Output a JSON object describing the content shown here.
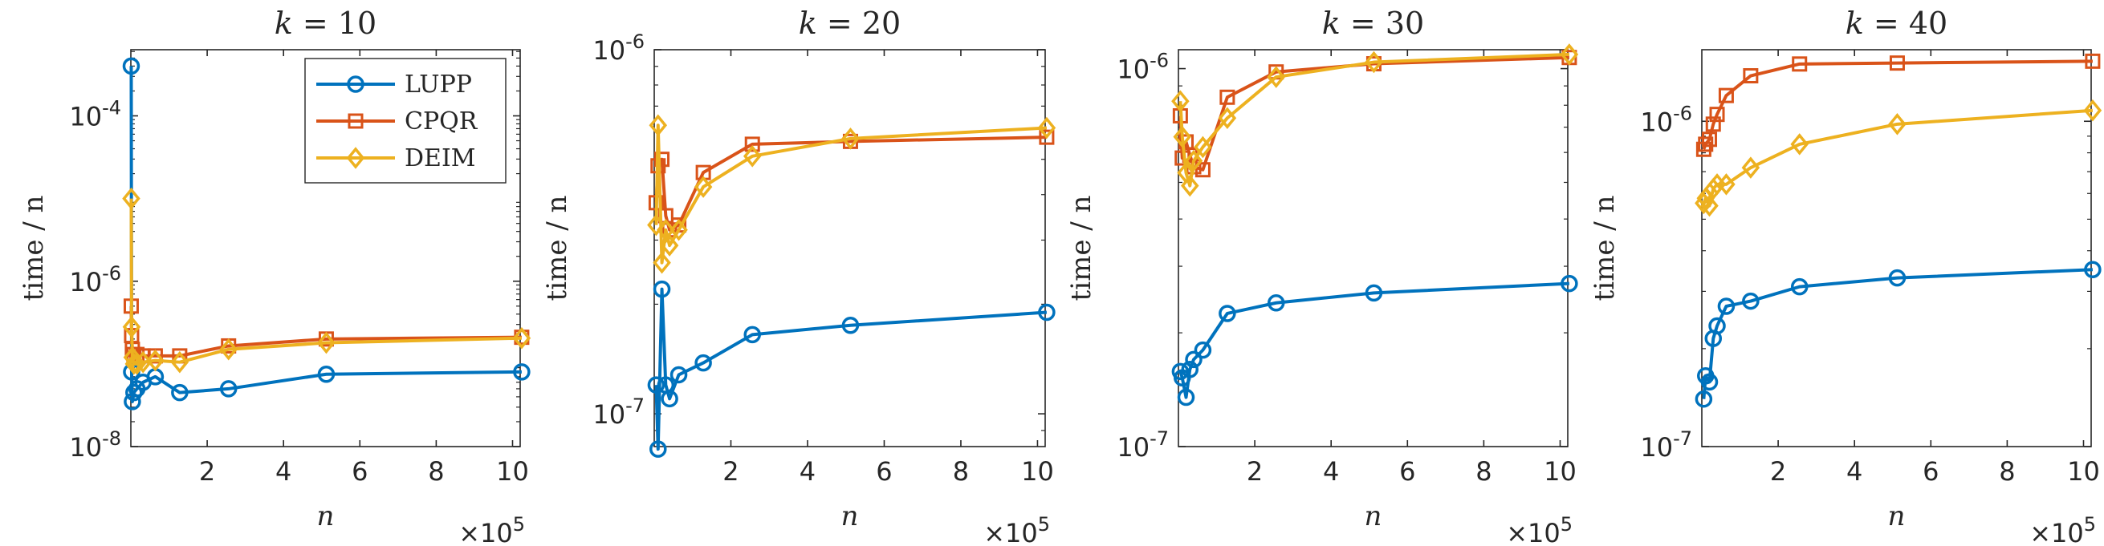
{
  "chart_data": [
    {
      "type": "line",
      "title": "k = 10",
      "title_var": "k",
      "title_value": "= 10",
      "xlabel": "n",
      "ylabel": "time / n",
      "x_multiplier": "×10",
      "x_multiplier_exp": "5",
      "xlim": [
        0,
        10.2
      ],
      "ylim_log10": [
        -8,
        -3.2
      ],
      "x_ticks": [
        2,
        4,
        6,
        8,
        10
      ],
      "x_tick_labels": [
        "2",
        "4",
        "6",
        "8",
        "10"
      ],
      "y_ticks_log10": [
        -8,
        -6,
        -4
      ],
      "y_tick_labels": [
        {
          "base": "10",
          "exp": "-8"
        },
        {
          "base": "10",
          "exp": "-6"
        },
        {
          "base": "10",
          "exp": "-4"
        }
      ],
      "legend": {
        "position": "top-right",
        "entries": [
          "LUPP",
          "CPQR",
          "DEIM"
        ]
      },
      "series": [
        {
          "name": "LUPP",
          "x": [
            0.01,
            0.02,
            0.04,
            0.08,
            0.16,
            0.32,
            0.64,
            1.28,
            2.56,
            5.12,
            10.24
          ],
          "y": [
            0.0004,
            8e-08,
            3.5e-08,
            4.5e-08,
            5e-08,
            6e-08,
            7e-08,
            4.5e-08,
            5e-08,
            7.5e-08,
            8e-08
          ]
        },
        {
          "name": "CPQR",
          "x": [
            0.01,
            0.02,
            0.04,
            0.08,
            0.16,
            0.32,
            0.64,
            1.28,
            2.56,
            5.12,
            10.24
          ],
          "y": [
            5e-07,
            2.2e-07,
            1.5e-07,
            1.3e-07,
            1.3e-07,
            1.25e-07,
            1.25e-07,
            1.25e-07,
            1.65e-07,
            2e-07,
            2.1e-07
          ]
        },
        {
          "name": "DEIM",
          "x": [
            0.01,
            0.02,
            0.04,
            0.08,
            0.16,
            0.32,
            0.64,
            1.28,
            2.56,
            5.12,
            10.24
          ],
          "y": [
            1e-05,
            2.8e-07,
            1.2e-07,
            1e-07,
            1e-07,
            1.05e-07,
            1.1e-07,
            1.05e-07,
            1.5e-07,
            1.8e-07,
            2.05e-07
          ]
        }
      ]
    },
    {
      "type": "line",
      "title": "k = 20",
      "title_var": "k",
      "title_value": "= 20",
      "xlabel": "n",
      "ylabel": "time / n",
      "x_multiplier": "×10",
      "x_multiplier_exp": "5",
      "xlim": [
        0,
        10.2
      ],
      "ylim_log10": [
        -7.09,
        -6
      ],
      "x_ticks": [
        2,
        4,
        6,
        8,
        10
      ],
      "x_tick_labels": [
        "2",
        "4",
        "6",
        "8",
        "10"
      ],
      "y_ticks_log10": [
        -7,
        -6
      ],
      "y_tick_labels": [
        {
          "base": "10",
          "exp": "-7"
        },
        {
          "base": "10",
          "exp": "-6"
        }
      ],
      "series": [
        {
          "name": "LUPP",
          "x": [
            0.05,
            0.1,
            0.2,
            0.3,
            0.4,
            0.64,
            1.28,
            2.56,
            5.12,
            10.24
          ],
          "y": [
            1.2e-07,
            8e-08,
            2.2e-07,
            1.2e-07,
            1.1e-07,
            1.28e-07,
            1.38e-07,
            1.65e-07,
            1.75e-07,
            1.9e-07
          ]
        },
        {
          "name": "CPQR",
          "x": [
            0.05,
            0.1,
            0.2,
            0.3,
            0.4,
            0.64,
            1.28,
            2.56,
            5.12,
            10.24
          ],
          "y": [
            3.8e-07,
            4.8e-07,
            5e-07,
            3.5e-07,
            3.2e-07,
            3.3e-07,
            4.6e-07,
            5.5e-07,
            5.6e-07,
            5.75e-07
          ]
        },
        {
          "name": "DEIM",
          "x": [
            0.05,
            0.1,
            0.2,
            0.3,
            0.4,
            0.64,
            1.28,
            2.56,
            5.12,
            10.24
          ],
          "y": [
            3.3e-07,
            6.2e-07,
            2.6e-07,
            3.2e-07,
            2.9e-07,
            3.2e-07,
            4.2e-07,
            5.1e-07,
            5.7e-07,
            6.1e-07
          ]
        }
      ]
    },
    {
      "type": "line",
      "title": "k = 30",
      "title_var": "k",
      "title_value": "= 30",
      "xlabel": "n",
      "ylabel": "time / n",
      "x_multiplier": "×10",
      "x_multiplier_exp": "5",
      "xlim": [
        0,
        10.2
      ],
      "ylim_log10": [
        -7,
        -5.95
      ],
      "x_ticks": [
        2,
        4,
        6,
        8,
        10
      ],
      "x_tick_labels": [
        "2",
        "4",
        "6",
        "8",
        "10"
      ],
      "y_ticks_log10": [
        -7,
        -6
      ],
      "y_tick_labels": [
        {
          "base": "10",
          "exp": "-7"
        },
        {
          "base": "10",
          "exp": "-6"
        }
      ],
      "series": [
        {
          "name": "LUPP",
          "x": [
            0.05,
            0.1,
            0.2,
            0.3,
            0.4,
            0.64,
            1.28,
            2.56,
            5.12,
            10.24
          ],
          "y": [
            1.58e-07,
            1.52e-07,
            1.35e-07,
            1.6e-07,
            1.7e-07,
            1.8e-07,
            2.25e-07,
            2.4e-07,
            2.55e-07,
            2.7e-07
          ]
        },
        {
          "name": "CPQR",
          "x": [
            0.05,
            0.1,
            0.2,
            0.3,
            0.4,
            0.64,
            1.28,
            2.56,
            5.12,
            10.24
          ],
          "y": [
            7.5e-07,
            5.8e-07,
            6.4e-07,
            5.9e-07,
            5.5e-07,
            5.4e-07,
            8.4e-07,
            9.8e-07,
            1.03e-06,
            1.07e-06
          ]
        },
        {
          "name": "DEIM",
          "x": [
            0.05,
            0.1,
            0.2,
            0.3,
            0.4,
            0.64,
            1.28,
            2.56,
            5.12,
            10.24
          ],
          "y": [
            8.2e-07,
            6.6e-07,
            5.3e-07,
            4.9e-07,
            5.7e-07,
            6.2e-07,
            7.4e-07,
            9.5e-07,
            1.04e-06,
            1.09e-06
          ]
        }
      ]
    },
    {
      "type": "line",
      "title": "k = 40",
      "title_var": "k",
      "title_value": "= 40",
      "xlabel": "n",
      "ylabel": "time / n",
      "x_multiplier": "×10",
      "x_multiplier_exp": "5",
      "xlim": [
        0,
        10.2
      ],
      "ylim_log10": [
        -7,
        -5.78
      ],
      "x_ticks": [
        2,
        4,
        6,
        8,
        10
      ],
      "x_tick_labels": [
        "2",
        "4",
        "6",
        "8",
        "10"
      ],
      "y_ticks_log10": [
        -7,
        -6
      ],
      "y_tick_labels": [
        {
          "base": "10",
          "exp": "-7"
        },
        {
          "base": "10",
          "exp": "-6"
        }
      ],
      "series": [
        {
          "name": "LUPP",
          "x": [
            0.05,
            0.1,
            0.2,
            0.3,
            0.4,
            0.64,
            1.28,
            2.56,
            5.12,
            10.24
          ],
          "y": [
            1.4e-07,
            1.65e-07,
            1.58e-07,
            2.15e-07,
            2.35e-07,
            2.7e-07,
            2.8e-07,
            3.1e-07,
            3.3e-07,
            3.5e-07
          ]
        },
        {
          "name": "CPQR",
          "x": [
            0.05,
            0.1,
            0.2,
            0.3,
            0.4,
            0.64,
            1.28,
            2.56,
            5.12,
            10.24
          ],
          "y": [
            8.2e-07,
            8.5e-07,
            8.8e-07,
            9.8e-07,
            1.05e-06,
            1.2e-06,
            1.38e-06,
            1.5e-06,
            1.51e-06,
            1.53e-06
          ]
        },
        {
          "name": "DEIM",
          "x": [
            0.05,
            0.1,
            0.2,
            0.3,
            0.4,
            0.64,
            1.28,
            2.56,
            5.12,
            10.24
          ],
          "y": [
            5.6e-07,
            5.8e-07,
            5.5e-07,
            6.2e-07,
            6.4e-07,
            6.4e-07,
            7.2e-07,
            8.5e-07,
            9.8e-07,
            1.08e-06
          ]
        }
      ]
    }
  ],
  "colors": {
    "LUPP": "#0072BD",
    "CPQR": "#D95319",
    "DEIM": "#EDB120",
    "axes": "#262626"
  }
}
